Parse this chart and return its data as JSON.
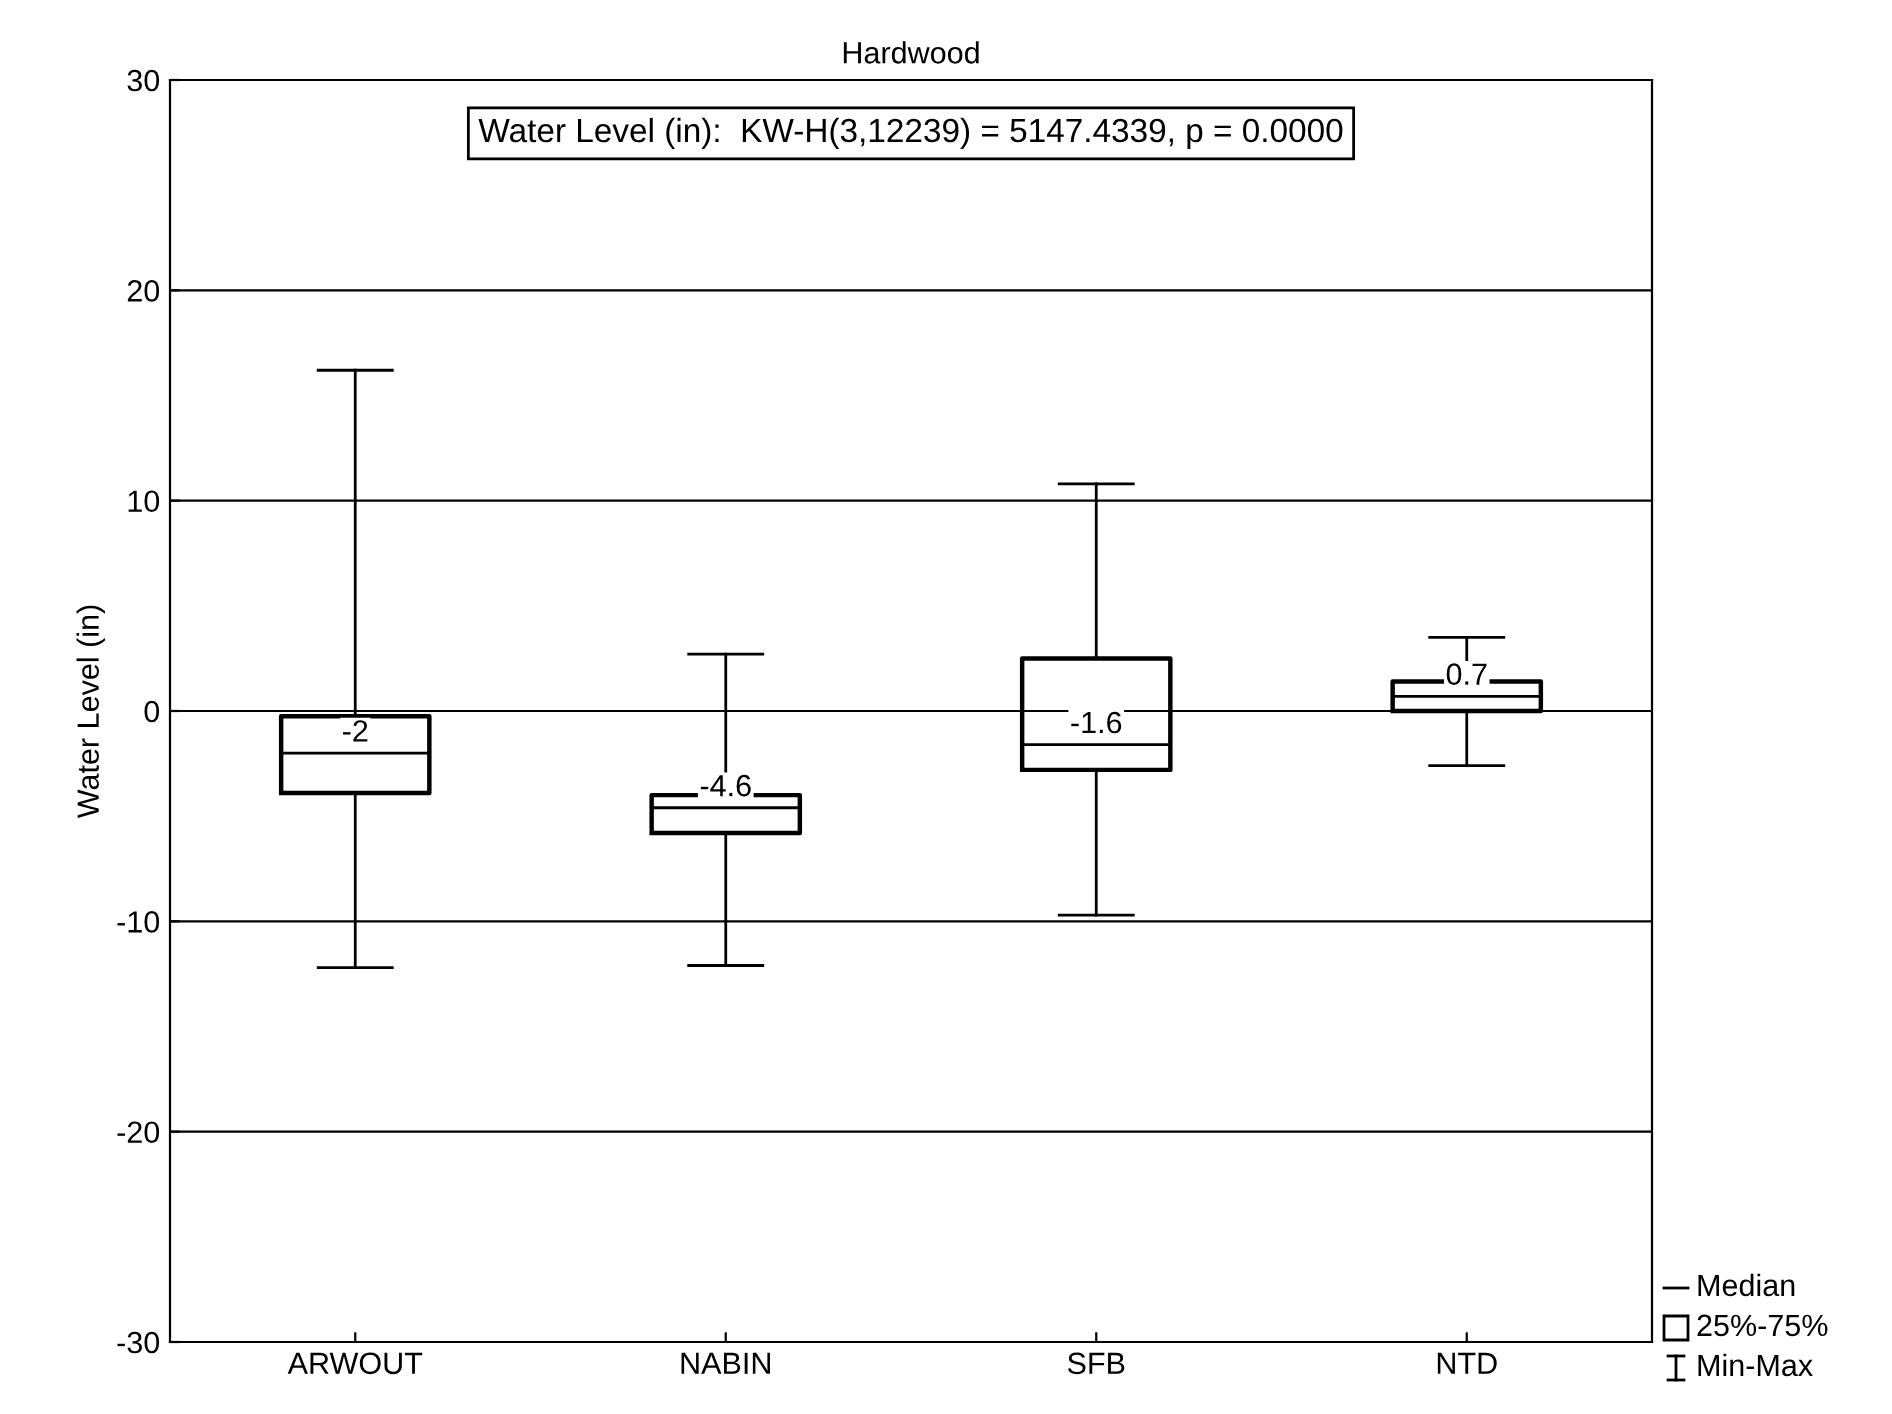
{
  "chart_data": {
    "type": "box",
    "title": "Hardwood",
    "ylabel": "Water Level (in)",
    "categories": [
      "ARWOUT",
      "NABIN",
      "SFB",
      "NTD"
    ],
    "boxes": [
      {
        "low": -12.2,
        "q1": -3.9,
        "median": -2,
        "q3": -0.25,
        "high": 16.2
      },
      {
        "low": -12.1,
        "q1": -5.8,
        "median": -4.6,
        "q3": -4.0,
        "high": 2.7
      },
      {
        "low": -9.7,
        "q1": -2.8,
        "median": -1.6,
        "q3": 2.5,
        "high": 10.8
      },
      {
        "low": -2.6,
        "q1": 0,
        "median": 0.7,
        "q3": 1.4,
        "high": 3.5
      }
    ],
    "value_labels": [
      "-2",
      "-4.6",
      "-1.6",
      "0.7"
    ],
    "ylim": [
      -30,
      30
    ],
    "yticks": [
      -30,
      -20,
      -10,
      0,
      10,
      20,
      30
    ],
    "grid": "y",
    "annotations": [
      "Water Level (in):  KW-H(3,12239) = 5147.4339, p = 0.0000",
      "Median",
      "25%-75%",
      "Min-Max"
    ]
  }
}
